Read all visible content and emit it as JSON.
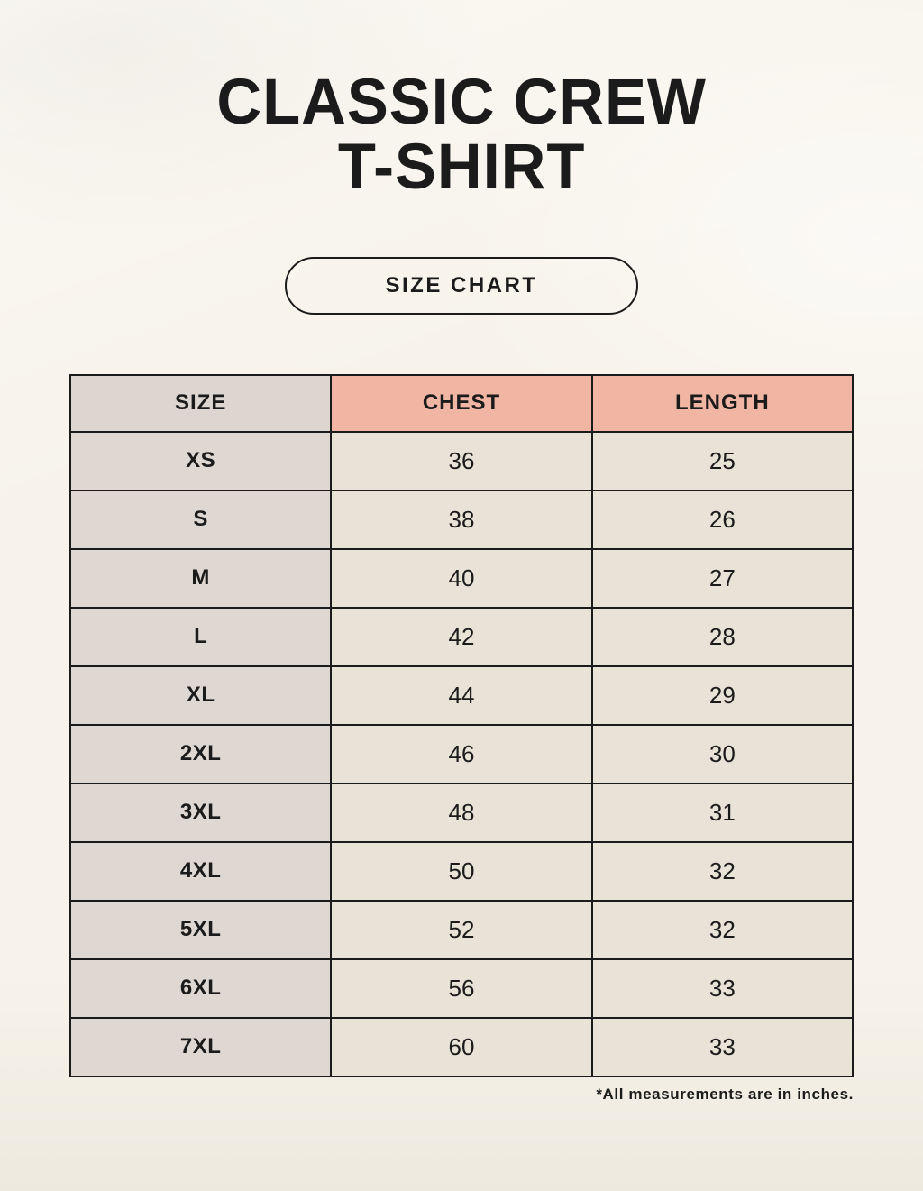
{
  "page": {
    "title_line1": "CLASSIC CREW",
    "title_line2": "T-SHIRT",
    "badge_label": "SIZE CHART",
    "footnote": "*All measurements are in inches."
  },
  "colors": {
    "background": "#f7f3ea",
    "border": "#1b1b1b",
    "text": "#1b1b1b",
    "size_header_bg": "#ddd6d0",
    "measure_header_bg": "#f0b5a3",
    "size_column_bg": "#ded7d2",
    "data_cell_bg": "#e9e2d7"
  },
  "chart_data": {
    "type": "table",
    "title": "CLASSIC CREW T-SHIRT",
    "columns": [
      "SIZE",
      "CHEST",
      "LENGTH"
    ],
    "rows": [
      [
        "XS",
        "36",
        "25"
      ],
      [
        "S",
        "38",
        "26"
      ],
      [
        "M",
        "40",
        "27"
      ],
      [
        "L",
        "42",
        "28"
      ],
      [
        "XL",
        "44",
        "29"
      ],
      [
        "2XL",
        "46",
        "30"
      ],
      [
        "3XL",
        "48",
        "31"
      ],
      [
        "4XL",
        "50",
        "32"
      ],
      [
        "5XL",
        "52",
        "32"
      ],
      [
        "6XL",
        "56",
        "33"
      ],
      [
        "7XL",
        "60",
        "33"
      ]
    ],
    "units": "inches",
    "layout": "size column gray, chest/length headers salmon, data cells beige"
  }
}
